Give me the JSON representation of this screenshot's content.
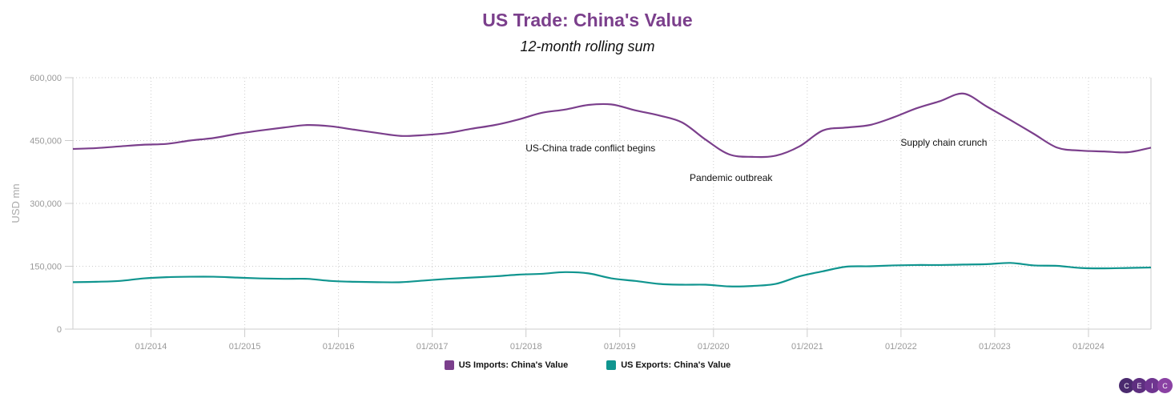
{
  "chart_data": {
    "type": "line",
    "title": "US Trade: China's Value",
    "subtitle": "12-month rolling sum",
    "ylabel": "USD mn",
    "xlabel": "",
    "ylim": [
      0,
      600000
    ],
    "yticks": [
      "0",
      "150,000",
      "300,000",
      "450,000",
      "600,000"
    ],
    "ytick_values": [
      0,
      150000,
      300000,
      450000,
      600000
    ],
    "xlim": [
      "2013-03",
      "2024-09"
    ],
    "xticks": [
      "01/2014",
      "01/2015",
      "01/2016",
      "01/2017",
      "01/2018",
      "01/2019",
      "01/2020",
      "01/2021",
      "01/2022",
      "01/2023",
      "01/2024"
    ],
    "grid": true,
    "legend_position": "bottom",
    "x": [
      "2013-03",
      "2013-06",
      "2013-09",
      "2013-12",
      "2014-03",
      "2014-06",
      "2014-09",
      "2014-12",
      "2015-03",
      "2015-06",
      "2015-09",
      "2015-12",
      "2016-03",
      "2016-06",
      "2016-09",
      "2016-12",
      "2017-03",
      "2017-06",
      "2017-09",
      "2017-12",
      "2018-03",
      "2018-06",
      "2018-09",
      "2018-12",
      "2019-03",
      "2019-06",
      "2019-09",
      "2019-12",
      "2020-03",
      "2020-06",
      "2020-09",
      "2020-12",
      "2021-03",
      "2021-06",
      "2021-09",
      "2021-12",
      "2022-03",
      "2022-06",
      "2022-09",
      "2022-12",
      "2023-03",
      "2023-06",
      "2023-09",
      "2023-12",
      "2024-03",
      "2024-06",
      "2024-09"
    ],
    "series": [
      {
        "name": "US Imports: China's Value",
        "color": "#7b3f8c",
        "values": [
          430000,
          432000,
          436000,
          440000,
          442000,
          450000,
          456000,
          466000,
          474000,
          481000,
          487000,
          484000,
          476000,
          468000,
          461000,
          463000,
          468000,
          478000,
          487000,
          500000,
          516000,
          524000,
          535000,
          536000,
          522000,
          510000,
          493000,
          452000,
          417000,
          411000,
          414000,
          436000,
          474000,
          481000,
          487000,
          505000,
          527000,
          544000,
          562000,
          531000,
          499000,
          466000,
          433000,
          426000,
          424000,
          422000,
          433000
        ]
      },
      {
        "name": "US Exports: China's Value",
        "color": "#10958f",
        "values": [
          112000,
          113000,
          115000,
          121000,
          124000,
          125000,
          125000,
          123000,
          121000,
          120000,
          120000,
          115000,
          113000,
          112000,
          112000,
          116000,
          120000,
          123000,
          126000,
          130000,
          132000,
          136000,
          133000,
          121000,
          115000,
          108000,
          106000,
          106000,
          102000,
          103000,
          108000,
          126000,
          138000,
          149000,
          150000,
          152000,
          153000,
          153000,
          154000,
          155000,
          158000,
          152000,
          151000,
          146000,
          145000,
          146000,
          147000
        ]
      }
    ],
    "annotations": [
      {
        "text": "US-China trade conflict begins",
        "x": "2018-03"
      },
      {
        "text": "Pandemic outbreak",
        "x": "2019-12"
      },
      {
        "text": "Supply chain crunch",
        "x": "2022-03"
      }
    ]
  },
  "brand": {
    "logo": "CEIC",
    "letters": [
      "C",
      "E",
      "I",
      "C"
    ]
  }
}
